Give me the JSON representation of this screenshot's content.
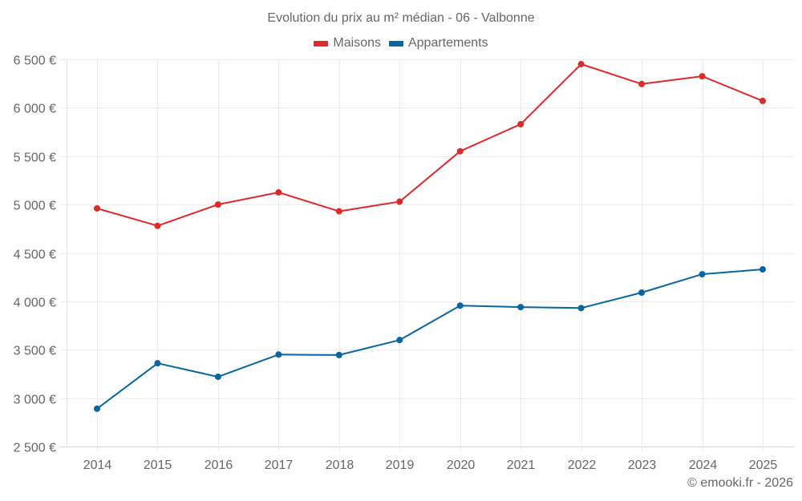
{
  "chart_data": {
    "type": "line",
    "title": "Evolution du prix au m² médian - 06 - Valbonne",
    "xlabel": "",
    "ylabel": "",
    "categories": [
      "2014",
      "2015",
      "2016",
      "2017",
      "2018",
      "2019",
      "2020",
      "2021",
      "2022",
      "2023",
      "2024",
      "2025"
    ],
    "series": [
      {
        "name": "Maisons",
        "color": "#dd2a2a",
        "values": [
          4960,
          4780,
          5000,
          5125,
          4930,
          5030,
          5550,
          5830,
          6450,
          6245,
          6325,
          6070
        ]
      },
      {
        "name": "Appartements",
        "color": "#07669f",
        "values": [
          2890,
          3360,
          3220,
          3450,
          3445,
          3600,
          3955,
          3940,
          3930,
          4090,
          4280,
          4330
        ]
      }
    ],
    "ylim": [
      2500,
      6500
    ],
    "yticks": [
      2500,
      3000,
      3500,
      4000,
      4500,
      5000,
      5500,
      6000,
      6500
    ],
    "ytick_labels": [
      "2 500 €",
      "3 000 €",
      "3 500 €",
      "4 000 €",
      "4 500 €",
      "5 000 €",
      "5 500 €",
      "6 000 €",
      "6 500 €"
    ],
    "grid": true,
    "legend_position": "top-center",
    "markers": true
  },
  "credit": "© emooki.fr - 2026"
}
